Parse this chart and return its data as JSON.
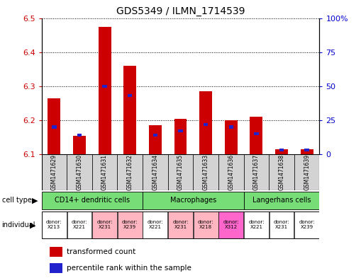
{
  "title": "GDS5349 / ILMN_1714539",
  "samples": [
    "GSM1471629",
    "GSM1471630",
    "GSM1471631",
    "GSM1471632",
    "GSM1471634",
    "GSM1471635",
    "GSM1471633",
    "GSM1471636",
    "GSM1471637",
    "GSM1471638",
    "GSM1471639"
  ],
  "red_values": [
    6.265,
    6.155,
    6.475,
    6.36,
    6.185,
    6.205,
    6.285,
    6.2,
    6.21,
    6.115,
    6.115
  ],
  "blue_values": [
    20,
    14,
    50,
    43,
    14,
    17,
    22,
    20,
    15,
    3,
    3
  ],
  "ylim_left": [
    6.1,
    6.5
  ],
  "ylim_right": [
    0,
    100
  ],
  "yticks_left": [
    6.1,
    6.2,
    6.3,
    6.4,
    6.5
  ],
  "yticks_right": [
    0,
    25,
    50,
    75,
    100
  ],
  "ytick_labels_right": [
    "0",
    "25",
    "50",
    "75",
    "100%"
  ],
  "bar_width": 0.5,
  "blue_bar_width": 0.18,
  "bar_bottom": 6.1,
  "red_color": "#CC0000",
  "blue_color": "#2222CC",
  "cell_type_color": "#77DD77",
  "sample_bg_color": "#D3D3D3",
  "tick_label_color_left": "#CC0000",
  "tick_label_color_right": "#0000CC",
  "indiv_colors": [
    "#FFFFFF",
    "#FFFFFF",
    "#FFB6C1",
    "#FFB6C1",
    "#FFFFFF",
    "#FFB6C1",
    "#FFB6C1",
    "#FF66CC",
    "#FFFFFF",
    "#FFFFFF",
    "#FFFFFF"
  ],
  "indiv_labels": [
    "donor:\nX213",
    "donor:\nX221",
    "donor:\nX231",
    "donor:\nX239",
    "donor:\nX221",
    "donor:\nX231",
    "donor:\nX218",
    "donor:\nX312",
    "donor:\nX221",
    "donor:\nX231",
    "donor:\nX239"
  ],
  "cell_groups": [
    {
      "label": "CD14+ dendritic cells",
      "start": 0,
      "end": 4
    },
    {
      "label": "Macrophages",
      "start": 4,
      "end": 8
    },
    {
      "label": "Langerhans cells",
      "start": 8,
      "end": 11
    }
  ]
}
